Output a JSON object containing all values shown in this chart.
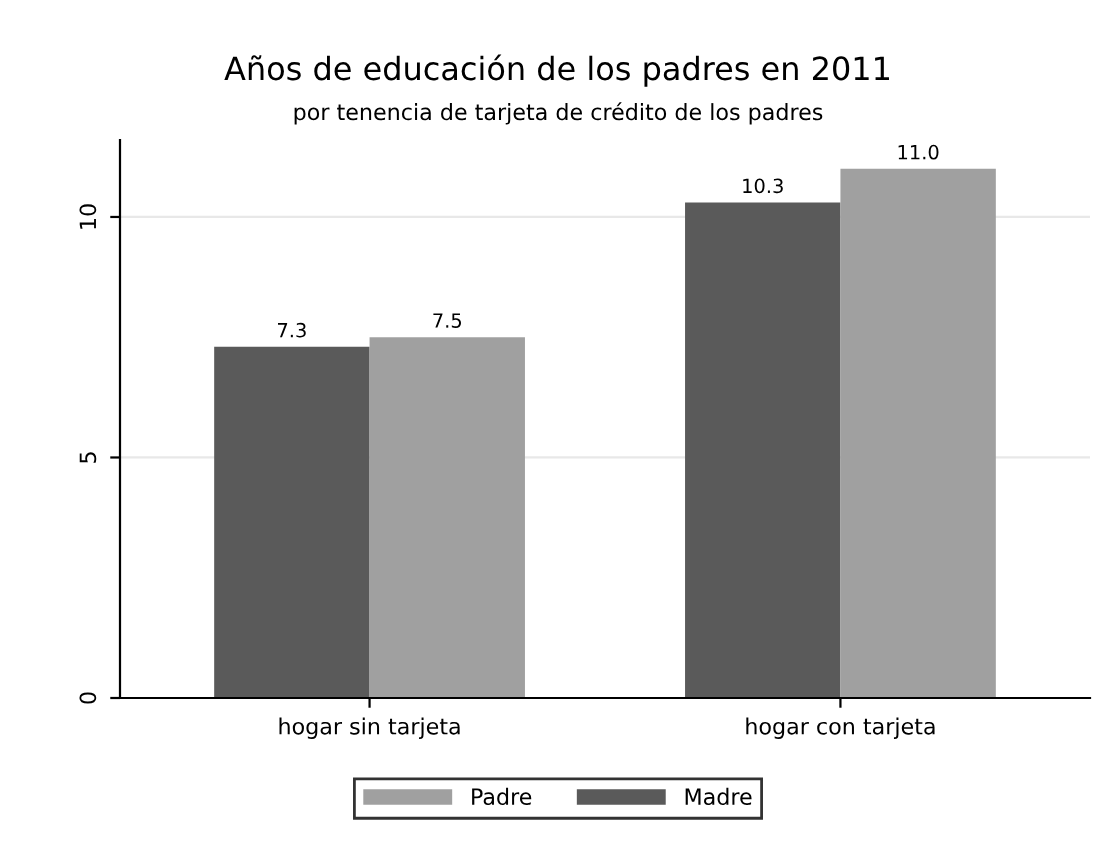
{
  "chart_data": {
    "type": "bar",
    "title": "Años de educación de los padres en 2011",
    "subtitle": "por tenencia de tarjeta de crédito de los padres",
    "categories": [
      "hogar sin tarjeta",
      "hogar con tarjeta"
    ],
    "series": [
      {
        "name": "Madre",
        "color": "#5a5a5a",
        "values": [
          7.3,
          10.3
        ],
        "value_labels": [
          "7.3",
          "10.3"
        ]
      },
      {
        "name": "Padre",
        "color": "#a0a0a0",
        "values": [
          7.5,
          11.0
        ],
        "value_labels": [
          "7.5",
          "11.0"
        ]
      }
    ],
    "ylim": [
      0,
      11.6
    ],
    "yticks": [
      0,
      5,
      10
    ],
    "grid": "y",
    "legend": "bottom"
  }
}
